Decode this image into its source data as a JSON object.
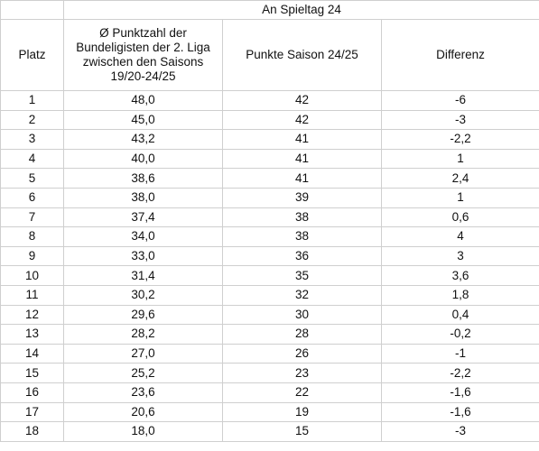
{
  "table": {
    "super_header": "An Spieltag 24",
    "headers": {
      "platz": "Platz",
      "avg": "Ø Punktzahl der Bundeligisten der 2. Liga zwischen den Saisons 19/20-24/25",
      "points": "Punkte Saison 24/25",
      "diff": "Differenz"
    },
    "rows": [
      {
        "platz": "1",
        "avg": "48,0",
        "points": "42",
        "diff": "-6"
      },
      {
        "platz": "2",
        "avg": "45,0",
        "points": "42",
        "diff": "-3"
      },
      {
        "platz": "3",
        "avg": "43,2",
        "points": "41",
        "diff": "-2,2"
      },
      {
        "platz": "4",
        "avg": "40,0",
        "points": "41",
        "diff": "1"
      },
      {
        "platz": "5",
        "avg": "38,6",
        "points": "41",
        "diff": "2,4"
      },
      {
        "platz": "6",
        "avg": "38,0",
        "points": "39",
        "diff": "1"
      },
      {
        "platz": "7",
        "avg": "37,4",
        "points": "38",
        "diff": "0,6"
      },
      {
        "platz": "8",
        "avg": "34,0",
        "points": "38",
        "diff": "4"
      },
      {
        "platz": "9",
        "avg": "33,0",
        "points": "36",
        "diff": "3"
      },
      {
        "platz": "10",
        "avg": "31,4",
        "points": "35",
        "diff": "3,6"
      },
      {
        "platz": "11",
        "avg": "30,2",
        "points": "32",
        "diff": "1,8"
      },
      {
        "platz": "12",
        "avg": "29,6",
        "points": "30",
        "diff": "0,4"
      },
      {
        "platz": "13",
        "avg": "28,2",
        "points": "28",
        "diff": "-0,2"
      },
      {
        "platz": "14",
        "avg": "27,0",
        "points": "26",
        "diff": "-1"
      },
      {
        "platz": "15",
        "avg": "25,2",
        "points": "23",
        "diff": "-2,2"
      },
      {
        "platz": "16",
        "avg": "23,6",
        "points": "22",
        "diff": "-1,6"
      },
      {
        "platz": "17",
        "avg": "20,6",
        "points": "19",
        "diff": "-1,6"
      },
      {
        "platz": "18",
        "avg": "18,0",
        "points": "15",
        "diff": "-3"
      }
    ]
  }
}
